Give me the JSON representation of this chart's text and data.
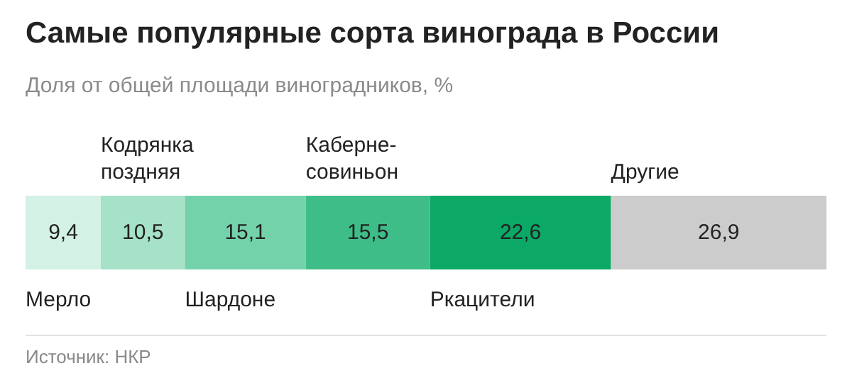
{
  "chart_data": {
    "type": "bar",
    "orientation": "horizontal",
    "stacked": true,
    "title": "Самые популярные сорта винограда в России",
    "subtitle": "Доля от общей площади виноградников, %",
    "categories": [
      null
    ],
    "series": [
      {
        "name": "Мерло",
        "color": "#d3f1e4",
        "values": [
          9.4
        ],
        "value_labels": [
          "9,4"
        ]
      },
      {
        "name": "Кодрянка поздняя",
        "color": "#a5e2c8",
        "values": [
          10.5
        ],
        "value_labels": [
          "10,5"
        ]
      },
      {
        "name": "Шардоне",
        "color": "#74d2aa",
        "values": [
          15.1
        ],
        "value_labels": [
          "15,1"
        ]
      },
      {
        "name": "Каберне-совиньон",
        "color": "#3fbd89",
        "values": [
          15.5
        ],
        "value_labels": [
          "15,5"
        ]
      },
      {
        "name": "Ркацители",
        "color": "#0ba866",
        "values": [
          22.6
        ],
        "value_labels": [
          "22,6"
        ]
      },
      {
        "name": "Другие",
        "color": "#cccccc",
        "values": [
          26.9
        ],
        "value_labels": [
          "26,9"
        ]
      }
    ],
    "annotations": [
      "Источник: НКР"
    ]
  }
}
